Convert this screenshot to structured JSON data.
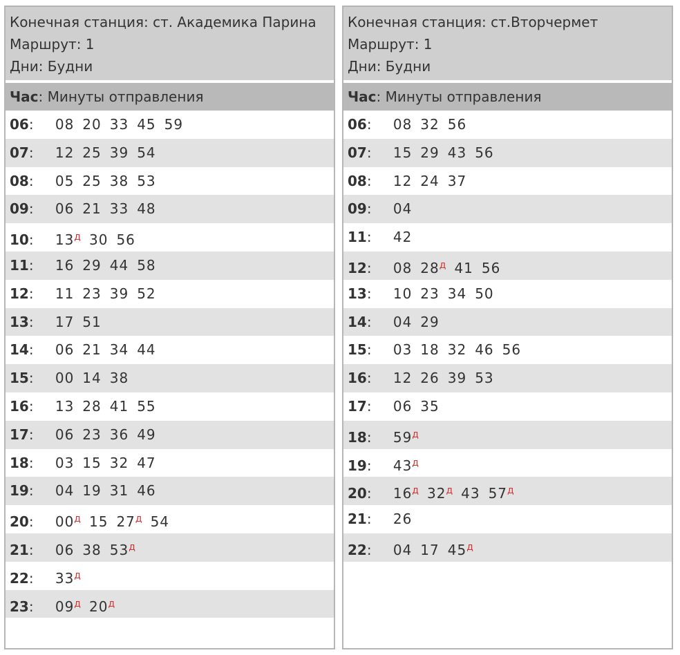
{
  "left": {
    "info": {
      "station": "Конечная станция: ст. Академика Парина",
      "route": "Маршрут: 1",
      "days": "Дни: Будни"
    },
    "header": {
      "hour": "Час",
      "rest": ": Минуты отправления"
    },
    "rows": [
      {
        "hour": "06",
        "mins": [
          {
            "m": "08",
            "d": ""
          },
          {
            "m": "20",
            "d": ""
          },
          {
            "m": "33",
            "d": ""
          },
          {
            "m": "45",
            "d": ""
          },
          {
            "m": "59",
            "d": ""
          }
        ]
      },
      {
        "hour": "07",
        "mins": [
          {
            "m": "12",
            "d": ""
          },
          {
            "m": "25",
            "d": ""
          },
          {
            "m": "39",
            "d": ""
          },
          {
            "m": "54",
            "d": ""
          }
        ]
      },
      {
        "hour": "08",
        "mins": [
          {
            "m": "05",
            "d": ""
          },
          {
            "m": "25",
            "d": ""
          },
          {
            "m": "38",
            "d": ""
          },
          {
            "m": "53",
            "d": ""
          }
        ]
      },
      {
        "hour": "09",
        "mins": [
          {
            "m": "06",
            "d": ""
          },
          {
            "m": "21",
            "d": ""
          },
          {
            "m": "33",
            "d": ""
          },
          {
            "m": "48",
            "d": ""
          }
        ]
      },
      {
        "hour": "10",
        "mins": [
          {
            "m": "13",
            "d": "д"
          },
          {
            "m": "30",
            "d": ""
          },
          {
            "m": "56",
            "d": ""
          }
        ]
      },
      {
        "hour": "11",
        "mins": [
          {
            "m": "16",
            "d": ""
          },
          {
            "m": "29",
            "d": ""
          },
          {
            "m": "44",
            "d": ""
          },
          {
            "m": "58",
            "d": ""
          }
        ]
      },
      {
        "hour": "12",
        "mins": [
          {
            "m": "11",
            "d": ""
          },
          {
            "m": "23",
            "d": ""
          },
          {
            "m": "39",
            "d": ""
          },
          {
            "m": "52",
            "d": ""
          }
        ]
      },
      {
        "hour": "13",
        "mins": [
          {
            "m": "17",
            "d": ""
          },
          {
            "m": "51",
            "d": ""
          }
        ]
      },
      {
        "hour": "14",
        "mins": [
          {
            "m": "06",
            "d": ""
          },
          {
            "m": "21",
            "d": ""
          },
          {
            "m": "34",
            "d": ""
          },
          {
            "m": "44",
            "d": ""
          }
        ]
      },
      {
        "hour": "15",
        "mins": [
          {
            "m": "00",
            "d": ""
          },
          {
            "m": "14",
            "d": ""
          },
          {
            "m": "38",
            "d": ""
          }
        ]
      },
      {
        "hour": "16",
        "mins": [
          {
            "m": "13",
            "d": ""
          },
          {
            "m": "28",
            "d": ""
          },
          {
            "m": "41",
            "d": ""
          },
          {
            "m": "55",
            "d": ""
          }
        ]
      },
      {
        "hour": "17",
        "mins": [
          {
            "m": "06",
            "d": ""
          },
          {
            "m": "23",
            "d": ""
          },
          {
            "m": "36",
            "d": ""
          },
          {
            "m": "49",
            "d": ""
          }
        ]
      },
      {
        "hour": "18",
        "mins": [
          {
            "m": "03",
            "d": ""
          },
          {
            "m": "15",
            "d": ""
          },
          {
            "m": "32",
            "d": ""
          },
          {
            "m": "47",
            "d": ""
          }
        ]
      },
      {
        "hour": "19",
        "mins": [
          {
            "m": "04",
            "d": ""
          },
          {
            "m": "19",
            "d": ""
          },
          {
            "m": "31",
            "d": ""
          },
          {
            "m": "46",
            "d": ""
          }
        ]
      },
      {
        "hour": "20",
        "mins": [
          {
            "m": "00",
            "d": "д"
          },
          {
            "m": "15",
            "d": ""
          },
          {
            "m": "27",
            "d": "д"
          },
          {
            "m": "54",
            "d": ""
          }
        ]
      },
      {
        "hour": "21",
        "mins": [
          {
            "m": "06",
            "d": ""
          },
          {
            "m": "38",
            "d": ""
          },
          {
            "m": "53",
            "d": "д"
          }
        ]
      },
      {
        "hour": "22",
        "mins": [
          {
            "m": "33",
            "d": "д"
          }
        ]
      },
      {
        "hour": "23",
        "mins": [
          {
            "m": "09",
            "d": "д"
          },
          {
            "m": "20",
            "d": "д"
          }
        ]
      }
    ]
  },
  "right": {
    "info": {
      "station": "Конечная станция: ст.Вторчермет",
      "route": "Маршрут: 1",
      "days": "Дни: Будни"
    },
    "header": {
      "hour": "Час",
      "rest": ": Минуты отправления"
    },
    "rows": [
      {
        "hour": "06",
        "mins": [
          {
            "m": "08",
            "d": ""
          },
          {
            "m": "32",
            "d": ""
          },
          {
            "m": "56",
            "d": ""
          }
        ]
      },
      {
        "hour": "07",
        "mins": [
          {
            "m": "15",
            "d": ""
          },
          {
            "m": "29",
            "d": ""
          },
          {
            "m": "43",
            "d": ""
          },
          {
            "m": "56",
            "d": ""
          }
        ]
      },
      {
        "hour": "08",
        "mins": [
          {
            "m": "12",
            "d": ""
          },
          {
            "m": "24",
            "d": ""
          },
          {
            "m": "37",
            "d": ""
          }
        ]
      },
      {
        "hour": "09",
        "mins": [
          {
            "m": "04",
            "d": ""
          }
        ]
      },
      {
        "hour": "11",
        "mins": [
          {
            "m": "42",
            "d": ""
          }
        ]
      },
      {
        "hour": "12",
        "mins": [
          {
            "m": "08",
            "d": ""
          },
          {
            "m": "28",
            "d": "д"
          },
          {
            "m": "41",
            "d": ""
          },
          {
            "m": "56",
            "d": ""
          }
        ]
      },
      {
        "hour": "13",
        "mins": [
          {
            "m": "10",
            "d": ""
          },
          {
            "m": "23",
            "d": ""
          },
          {
            "m": "34",
            "d": ""
          },
          {
            "m": "50",
            "d": ""
          }
        ]
      },
      {
        "hour": "14",
        "mins": [
          {
            "m": "04",
            "d": ""
          },
          {
            "m": "29",
            "d": ""
          }
        ]
      },
      {
        "hour": "15",
        "mins": [
          {
            "m": "03",
            "d": ""
          },
          {
            "m": "18",
            "d": ""
          },
          {
            "m": "32",
            "d": ""
          },
          {
            "m": "46",
            "d": ""
          },
          {
            "m": "56",
            "d": ""
          }
        ]
      },
      {
        "hour": "16",
        "mins": [
          {
            "m": "12",
            "d": ""
          },
          {
            "m": "26",
            "d": ""
          },
          {
            "m": "39",
            "d": ""
          },
          {
            "m": "53",
            "d": ""
          }
        ]
      },
      {
        "hour": "17",
        "mins": [
          {
            "m": "06",
            "d": ""
          },
          {
            "m": "35",
            "d": ""
          }
        ]
      },
      {
        "hour": "18",
        "mins": [
          {
            "m": "59",
            "d": "д"
          }
        ]
      },
      {
        "hour": "19",
        "mins": [
          {
            "m": "43",
            "d": "д"
          }
        ]
      },
      {
        "hour": "20",
        "mins": [
          {
            "m": "16",
            "d": "д"
          },
          {
            "m": "32",
            "d": "д"
          },
          {
            "m": "43",
            "d": ""
          },
          {
            "m": "57",
            "d": "д"
          }
        ]
      },
      {
        "hour": "21",
        "mins": [
          {
            "m": "26",
            "d": ""
          }
        ]
      },
      {
        "hour": "22",
        "mins": [
          {
            "m": "04",
            "d": ""
          },
          {
            "m": "17",
            "d": ""
          },
          {
            "m": "45",
            "d": "д"
          }
        ]
      }
    ]
  },
  "colors": {
    "info_bg": "#cfcfcf",
    "header_bg": "#b9b9b9",
    "row_alt_bg": "#e2e2e2",
    "mark": "#d33333",
    "border": "#b5b5b5"
  }
}
